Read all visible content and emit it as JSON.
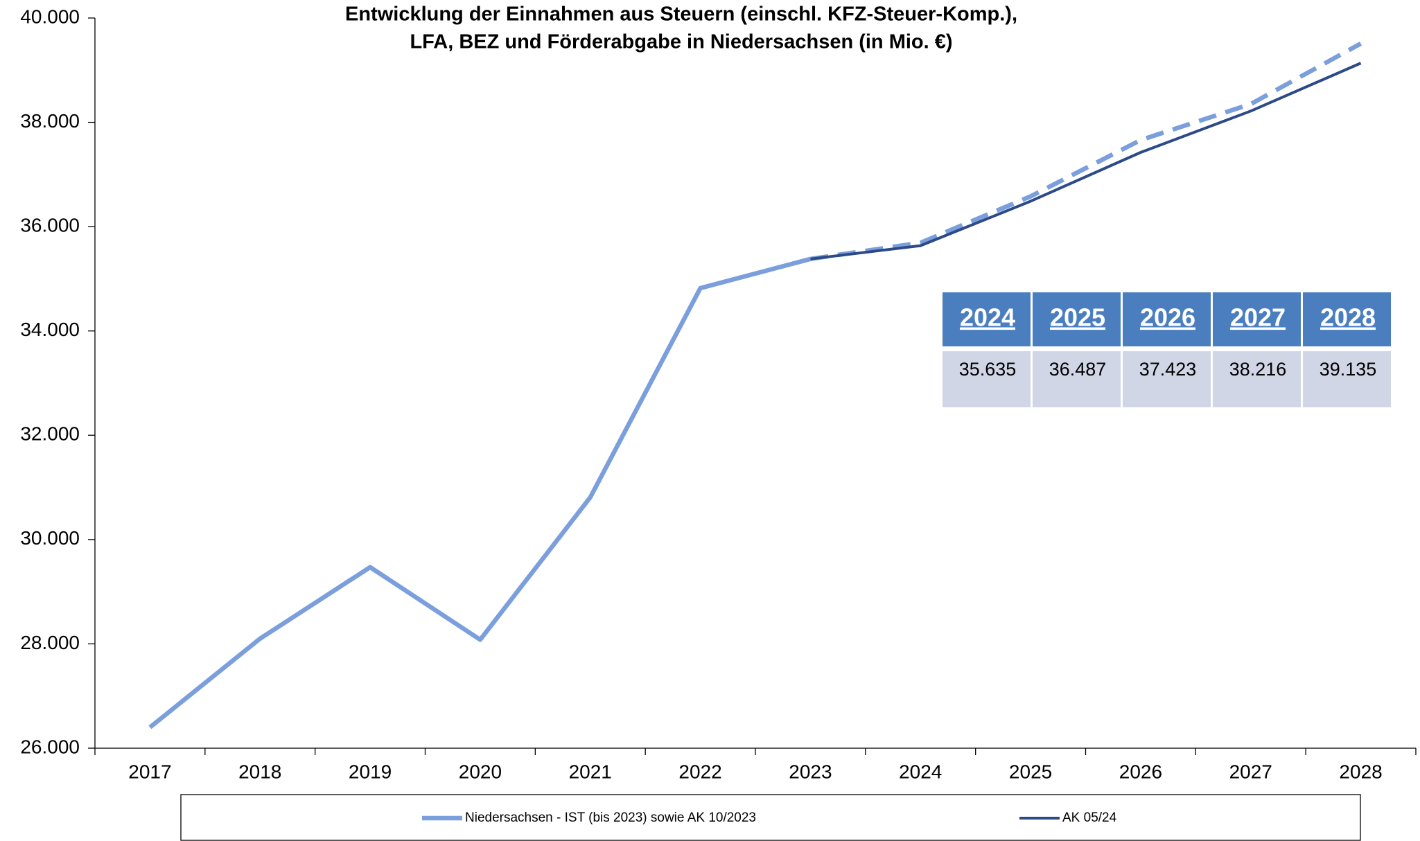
{
  "chart_data": {
    "type": "line",
    "title": [
      "Entwicklung der Einnahmen aus Steuern (einschl. KFZ-Steuer-Komp.),",
      "LFA, BEZ und Förderabgabe in Niedersachsen (in Mio. €)"
    ],
    "categories": [
      "2017",
      "2018",
      "2019",
      "2020",
      "2021",
      "2022",
      "2023",
      "2024",
      "2025",
      "2026",
      "2027",
      "2028"
    ],
    "series": [
      {
        "name": "Niedersachsen - IST (bis 2023) sowie AK 10/2023",
        "color": "#7b9fdc",
        "dashed_after": "2023",
        "values": [
          26400,
          28100,
          29470,
          28080,
          30810,
          34820,
          35380,
          35690,
          36580,
          37660,
          38350,
          39510
        ]
      },
      {
        "name": "AK 05/24",
        "color": "#2c4a87",
        "values": [
          null,
          null,
          null,
          null,
          null,
          null,
          35380,
          35635,
          36487,
          37423,
          38216,
          39135
        ]
      }
    ],
    "ylim": [
      26000,
      40000
    ],
    "yticks": [
      {
        "value": 26000,
        "label": "26.000"
      },
      {
        "value": 28000,
        "label": "28.000"
      },
      {
        "value": 30000,
        "label": "30.000"
      },
      {
        "value": 32000,
        "label": "32.000"
      },
      {
        "value": 34000,
        "label": "34.000"
      },
      {
        "value": 36000,
        "label": "36.000"
      },
      {
        "value": 38000,
        "label": "38.000"
      },
      {
        "value": 40000,
        "label": "40.000"
      }
    ],
    "grid": false,
    "legend": "bottom",
    "table": {
      "header": [
        "2024",
        "2025",
        "2026",
        "2027",
        "2028"
      ],
      "rows": [
        [
          "35.635",
          "36.487",
          "37.423",
          "38.216",
          "39.135"
        ]
      ],
      "header_color": "#4a7ebf",
      "row_color": "#d0d6e6"
    }
  }
}
